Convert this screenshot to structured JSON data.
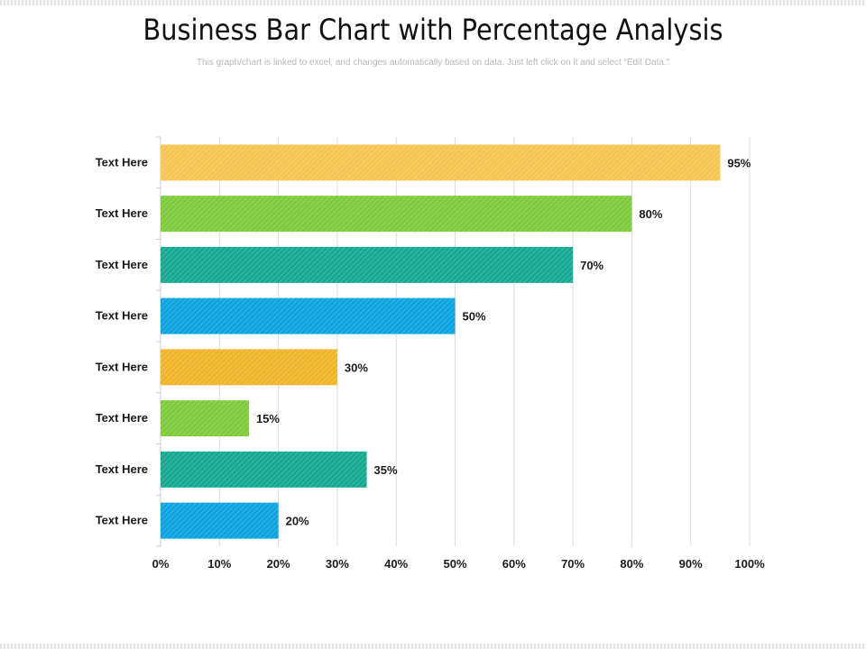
{
  "header": {
    "title": "Business Bar Chart with Percentage Analysis",
    "subtitle": "This graph/chart is linked to excel, and changes automatically  based on data. Just left click on it and select “Edit Data.”"
  },
  "chart_data": {
    "type": "bar",
    "orientation": "horizontal",
    "title": "Business Bar Chart with Percentage Analysis",
    "xlabel": "",
    "ylabel": "",
    "xlim": [
      0,
      100
    ],
    "ticks": [
      "0%",
      "10%",
      "20%",
      "30%",
      "40%",
      "50%",
      "60%",
      "70%",
      "80%",
      "90%",
      "100%"
    ],
    "grid": "vertical",
    "legend": "none",
    "bar_fill": "diagonal-hatched",
    "categories": [
      "Text Here",
      "Text Here",
      "Text Here",
      "Text Here",
      "Text Here",
      "Text Here",
      "Text Here",
      "Text Here"
    ],
    "values": [
      95,
      80,
      70,
      50,
      30,
      15,
      35,
      20
    ],
    "data_labels": [
      "95%",
      "80%",
      "70%",
      "50%",
      "30%",
      "15%",
      "35%",
      "20%"
    ],
    "colors": [
      "#F5C451",
      "#7DCB3A",
      "#13A991",
      "#0AA3E0",
      "#F0B429",
      "#7DCB3A",
      "#13A991",
      "#0AA3E0"
    ]
  }
}
